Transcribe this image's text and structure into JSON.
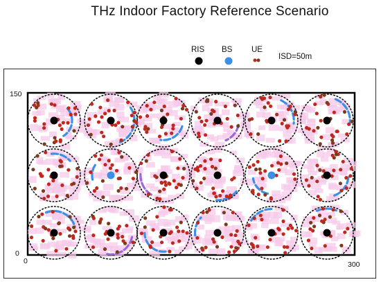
{
  "title": "THz Indoor Factory Reference Scenario",
  "legend": {
    "ris_label": "RIS",
    "bs_label": "BS",
    "ue_label": "UE",
    "isd_label": "ISD=50m"
  },
  "axes": {
    "y_max": "150",
    "y_min": "0",
    "x_min": "0",
    "x_max": "300"
  },
  "colors": {
    "ris": "#000000",
    "bs": "#3b8fe6",
    "ue": "#c0281e",
    "ue_alt": "#7a3b1c",
    "ris_link": "#3b8fe6",
    "arc_alt": "#9a6ad6",
    "shadow": "#f6c9e9",
    "dotted_circle": "#111111"
  },
  "cells": [
    {
      "row": 0,
      "col": 0,
      "node": "ris"
    },
    {
      "row": 0,
      "col": 1,
      "node": "ris"
    },
    {
      "row": 0,
      "col": 2,
      "node": "ris"
    },
    {
      "row": 0,
      "col": 3,
      "node": "ris"
    },
    {
      "row": 0,
      "col": 4,
      "node": "ris"
    },
    {
      "row": 0,
      "col": 5,
      "node": "ris"
    },
    {
      "row": 1,
      "col": 0,
      "node": "ris"
    },
    {
      "row": 1,
      "col": 1,
      "node": "bs"
    },
    {
      "row": 1,
      "col": 2,
      "node": "ris"
    },
    {
      "row": 1,
      "col": 3,
      "node": "ris"
    },
    {
      "row": 1,
      "col": 4,
      "node": "bs"
    },
    {
      "row": 1,
      "col": 5,
      "node": "ris"
    },
    {
      "row": 2,
      "col": 0,
      "node": "ris"
    },
    {
      "row": 2,
      "col": 1,
      "node": "ris"
    },
    {
      "row": 2,
      "col": 2,
      "node": "ris"
    },
    {
      "row": 2,
      "col": 3,
      "node": "ris"
    },
    {
      "row": 2,
      "col": 4,
      "node": "ris"
    },
    {
      "row": 2,
      "col": 5,
      "node": "ris"
    }
  ]
}
